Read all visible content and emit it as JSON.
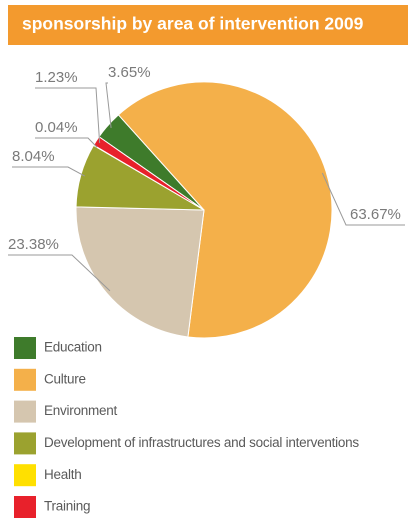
{
  "chart_data": {
    "type": "pie",
    "title": "sponsorship by area of intervention 2009",
    "categories": [
      "Education",
      "Culture",
      "Environment",
      "Development of infrastructures and social interventions",
      "Health",
      "Training"
    ],
    "values": [
      3.65,
      63.67,
      23.38,
      8.04,
      0.04,
      1.23
    ],
    "value_labels": [
      "3.65%",
      "63.67%",
      "23.38%",
      "8.04%",
      "0.04%",
      "1.23%"
    ],
    "colors": [
      "#3e7b2b",
      "#f4b04a",
      "#d5c6af",
      "#9ba22f",
      "#ffe000",
      "#e8212b"
    ],
    "legend": "bottom"
  }
}
